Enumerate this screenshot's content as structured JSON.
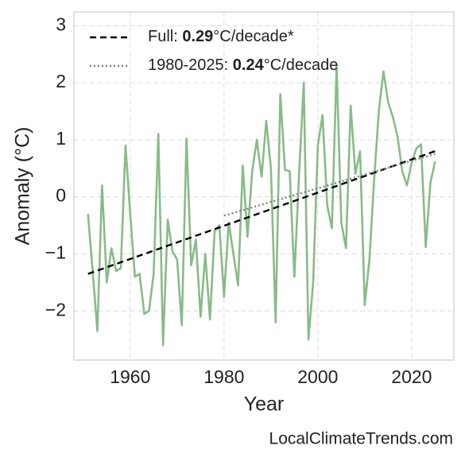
{
  "chart_data": {
    "type": "line",
    "xlabel": "Year",
    "ylabel": "Anomaly (°C)",
    "source": "LocalClimateTrends.com",
    "xlim": [
      1948,
      2029
    ],
    "ylim": [
      -2.86,
      3.24
    ],
    "xticks": [
      1960,
      1980,
      2000,
      2020
    ],
    "yticks": [
      {
        "value": -2,
        "label": "−2"
      },
      {
        "value": -1,
        "label": "−1"
      },
      0,
      1,
      2,
      3
    ],
    "grid": true,
    "legend": "upper left",
    "x": [
      1951,
      1952,
      1953,
      1954,
      1955,
      1956,
      1957,
      1958,
      1959,
      1960,
      1961,
      1962,
      1963,
      1964,
      1965,
      1966,
      1967,
      1968,
      1969,
      1970,
      1971,
      1972,
      1973,
      1974,
      1975,
      1976,
      1977,
      1978,
      1979,
      1980,
      1981,
      1982,
      1983,
      1984,
      1985,
      1986,
      1987,
      1988,
      1989,
      1990,
      1991,
      1992,
      1993,
      1994,
      1995,
      1996,
      1997,
      1998,
      1999,
      2000,
      2001,
      2002,
      2003,
      2004,
      2005,
      2006,
      2007,
      2008,
      2009,
      2010,
      2011,
      2012,
      2013,
      2014,
      2015,
      2016,
      2017,
      2018,
      2019,
      2020,
      2021,
      2022,
      2023,
      2024,
      2025
    ],
    "series": [
      {
        "color": "#88bb88",
        "style": "solid",
        "values": [
          -0.3,
          -1.3,
          -2.35,
          0.2,
          -1.5,
          -0.9,
          -1.3,
          -1.25,
          0.9,
          -0.3,
          -1.4,
          -1.35,
          -2.05,
          -2.0,
          -1.35,
          1.1,
          -2.6,
          -0.4,
          -0.95,
          -1.1,
          -2.25,
          1.02,
          -1.2,
          -0.75,
          -2.1,
          -1.0,
          -2.15,
          -0.6,
          -0.5,
          -1.75,
          -0.45,
          -1.0,
          -1.55,
          0.55,
          -0.7,
          0.45,
          1.0,
          0.35,
          1.33,
          0.5,
          -2.2,
          1.8,
          0.47,
          0.45,
          -1.4,
          0.4,
          2.0,
          -2.5,
          -1.5,
          0.9,
          1.43,
          -0.15,
          -0.55,
          2.3,
          -0.45,
          -0.9,
          1.6,
          0.4,
          0.8,
          -1.9,
          -1.1,
          0.3,
          1.5,
          2.2,
          1.65,
          1.4,
          1.05,
          0.45,
          0.2,
          0.6,
          0.85,
          0.92,
          -0.88,
          0.25,
          0.62
        ]
      }
    ],
    "trend_lines": [
      {
        "name": "Full: 0.29°C/decade*",
        "color": "#000000",
        "style": "dashed",
        "x": [
          1951,
          2025
        ],
        "values": [
          -1.35,
          0.8
        ]
      },
      {
        "name": "1980-2025: 0.24°C/decade",
        "color": "#808080",
        "style": "dotted",
        "x": [
          1980,
          2025
        ],
        "values": [
          -0.33,
          0.75
        ]
      }
    ]
  }
}
